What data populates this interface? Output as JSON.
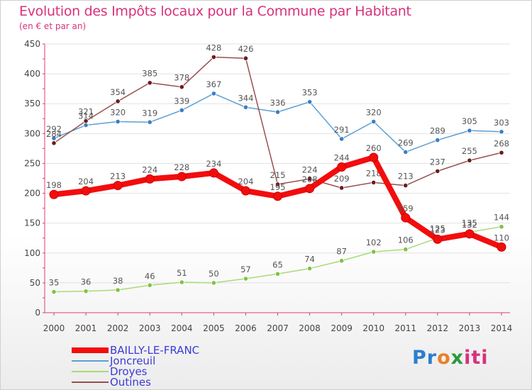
{
  "chart_data": {
    "type": "line",
    "title": "Evolution des Impôts locaux pour la Commune par Habitant",
    "subtitle": "(en € et par an)",
    "xlabel": "",
    "ylabel": "",
    "x": [
      "2000",
      "2001",
      "2002",
      "2003",
      "2004",
      "2005",
      "2006",
      "2007",
      "2008",
      "2009",
      "2010",
      "2011",
      "2012",
      "2013",
      "2014"
    ],
    "y_ticks": [
      "0",
      "50",
      "100",
      "150",
      "200",
      "250",
      "300",
      "350",
      "400",
      "450"
    ],
    "ylim": [
      0,
      450
    ],
    "grid": true,
    "legend_position": "bottom-left",
    "series": [
      {
        "name": "Joncreuil",
        "color": "#5b9fd4",
        "point_color": "#3a7fc0",
        "values": [
          292,
          314,
          320,
          319,
          339,
          367,
          344,
          336,
          353,
          291,
          320,
          269,
          289,
          305,
          303
        ],
        "labels": [
          "292",
          "314",
          "320",
          "319",
          "339",
          "367",
          "344",
          "336",
          "353",
          "291",
          "320",
          "269",
          "289",
          "305",
          "303"
        ]
      },
      {
        "name": "Droyes",
        "color": "#a8db75",
        "point_color": "#7fc248",
        "values": [
          35,
          36,
          38,
          46,
          51,
          50,
          57,
          65,
          74,
          87,
          102,
          106,
          125,
          135,
          144
        ],
        "labels": [
          "35",
          "36",
          "38",
          "46",
          "51",
          "50",
          "57",
          "65",
          "74",
          "87",
          "102",
          "106",
          "125",
          "135",
          "144"
        ]
      },
      {
        "name": "Outines",
        "color": "#9a4f4f",
        "point_color": "#6b1c1c",
        "values": [
          284,
          321,
          354,
          385,
          378,
          428,
          426,
          215,
          224,
          209,
          218,
          213,
          237,
          255,
          268
        ],
        "labels": [
          "284",
          "321",
          "354",
          "385",
          "378",
          "428",
          "426",
          "215",
          "224",
          "209",
          "218",
          "213",
          "237",
          "255",
          "268"
        ]
      },
      {
        "name": "BAILLY-LE-FRANC",
        "color": "#f20d0d",
        "point_color": "#f20d0d",
        "values": [
          198,
          204,
          213,
          224,
          228,
          234,
          204,
          195,
          208,
          244,
          260,
          159,
          123,
          132,
          110
        ],
        "labels": [
          "198",
          "204",
          "213",
          "224",
          "228",
          "234",
          "204",
          "195",
          "208",
          "244",
          "260",
          "159",
          "123",
          "132",
          "110"
        ]
      }
    ]
  },
  "legend": {
    "items": [
      {
        "label": "BAILLY-LE-FRANC",
        "color": "#f20d0d",
        "thickness": 8
      },
      {
        "label": "Joncreuil",
        "color": "#5b9fd4",
        "thickness": 2
      },
      {
        "label": "Droyes",
        "color": "#a8db75",
        "thickness": 2
      },
      {
        "label": "Outines",
        "color": "#9a4f4f",
        "thickness": 2
      }
    ],
    "label_color": "#3b3bd6"
  },
  "brand": {
    "p1": "Pr",
    "p2": "o",
    "p3": "x",
    "p4": "iti"
  }
}
